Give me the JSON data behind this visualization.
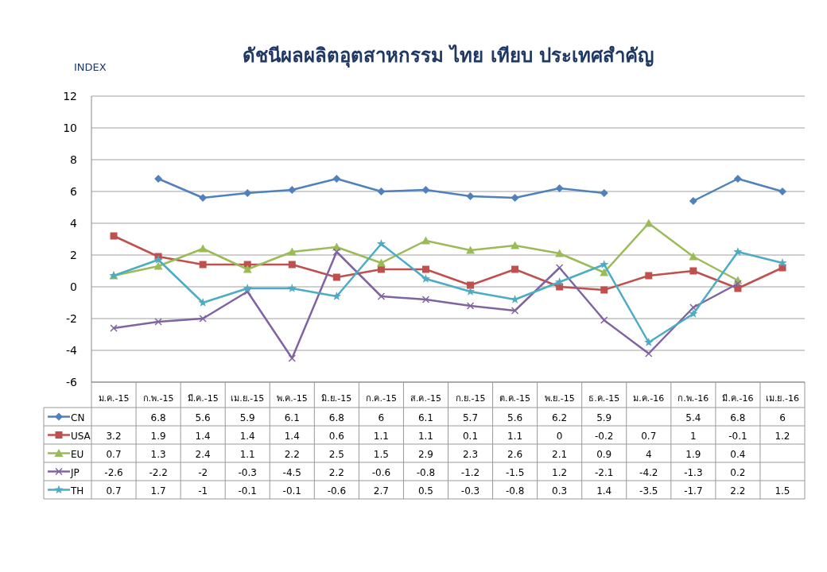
{
  "chart_data": {
    "type": "line",
    "title": "ดัชนีผลผลิตอุตสาหกรรม ไทย เทียบ ประเทศสำคัญ",
    "ylabel": "INDEX",
    "categories": [
      "ม.ค.-15",
      "ก.พ.-15",
      "มี.ค.-15",
      "เม.ย.-15",
      "พ.ค.-15",
      "มิ.ย.-15",
      "ก.ค.-15",
      "ส.ค.-15",
      "ก.ย.-15",
      "ต.ค.-15",
      "พ.ย.-15",
      "ธ.ค.-15",
      "ม.ค.-16",
      "ก.พ.-16",
      "มี.ค.-16",
      "เม.ย.-16"
    ],
    "series": [
      {
        "name": "CN",
        "color": "#4f81bd",
        "marker": "diamond",
        "values": [
          null,
          6.8,
          5.6,
          5.9,
          6.1,
          6.8,
          6,
          6.1,
          5.7,
          5.6,
          6.2,
          5.9,
          null,
          5.4,
          6.8,
          6
        ]
      },
      {
        "name": "USA",
        "color": "#c0504d",
        "marker": "square",
        "values": [
          3.2,
          1.9,
          1.4,
          1.4,
          1.4,
          0.6,
          1.1,
          1.1,
          0.1,
          1.1,
          0,
          -0.2,
          0.7,
          1,
          -0.1,
          1.2
        ]
      },
      {
        "name": "EU",
        "color": "#9bbb59",
        "marker": "triangle",
        "values": [
          0.7,
          1.3,
          2.4,
          1.1,
          2.2,
          2.5,
          1.5,
          2.9,
          2.3,
          2.6,
          2.1,
          0.9,
          4,
          1.9,
          0.4,
          null
        ]
      },
      {
        "name": "JP",
        "color": "#8064a2",
        "marker": "cross",
        "values": [
          -2.6,
          -2.2,
          -2,
          -0.3,
          -4.5,
          2.2,
          -0.6,
          -0.8,
          -1.2,
          -1.5,
          1.2,
          -2.1,
          -4.2,
          -1.3,
          0.2,
          null
        ]
      },
      {
        "name": "TH",
        "color": "#4bacc6",
        "marker": "star",
        "values": [
          0.7,
          1.7,
          -1,
          -0.1,
          -0.1,
          -0.6,
          2.7,
          0.5,
          -0.3,
          -0.8,
          0.3,
          1.4,
          -3.5,
          -1.7,
          2.2,
          1.5
        ]
      }
    ],
    "ylim": [
      -6,
      12
    ],
    "yticks": [
      -6,
      -4,
      -2,
      0,
      2,
      4,
      6,
      8,
      10,
      12
    ],
    "grid": "y",
    "legend": "bottom",
    "data_labels": true
  }
}
